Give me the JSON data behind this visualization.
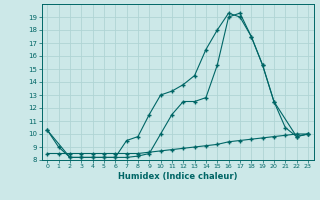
{
  "xlabel": "Humidex (Indice chaleur)",
  "bg_color": "#cce8e8",
  "line_color": "#006666",
  "grid_color": "#b0d4d4",
  "xlim": [
    -0.5,
    23.5
  ],
  "ylim": [
    8,
    20
  ],
  "yticks": [
    8,
    9,
    10,
    11,
    12,
    13,
    14,
    15,
    16,
    17,
    18,
    19
  ],
  "xticks": [
    0,
    1,
    2,
    3,
    4,
    5,
    6,
    7,
    8,
    9,
    10,
    11,
    12,
    13,
    14,
    15,
    16,
    17,
    18,
    19,
    20,
    21,
    22,
    23
  ],
  "curve1_x": [
    0,
    1,
    2,
    3,
    4,
    5,
    6,
    7,
    8,
    9,
    10,
    11,
    12,
    13,
    14,
    15,
    16,
    17,
    18,
    19,
    20,
    21,
    22,
    23
  ],
  "curve1_y": [
    8.5,
    8.5,
    8.5,
    8.5,
    8.5,
    8.5,
    8.5,
    8.5,
    8.5,
    8.6,
    8.7,
    8.8,
    8.9,
    9.0,
    9.1,
    9.2,
    9.4,
    9.5,
    9.6,
    9.7,
    9.8,
    9.9,
    10.0,
    10.0
  ],
  "curve2_x": [
    0,
    1,
    2,
    3,
    4,
    5,
    6,
    7,
    8,
    9,
    10,
    11,
    12,
    13,
    14,
    15,
    16,
    17,
    18,
    19,
    20,
    21,
    22,
    23
  ],
  "curve2_y": [
    10.3,
    9.0,
    8.2,
    8.2,
    8.2,
    8.2,
    8.2,
    8.2,
    8.3,
    8.5,
    10.0,
    11.5,
    12.5,
    12.5,
    12.8,
    15.3,
    19.0,
    19.3,
    17.5,
    15.3,
    12.5,
    10.5,
    9.8,
    10.0
  ],
  "curve3_x": [
    0,
    2,
    3,
    4,
    5,
    6,
    7,
    8,
    9,
    10,
    11,
    12,
    13,
    14,
    15,
    16,
    17,
    18,
    19,
    20,
    22,
    23
  ],
  "curve3_y": [
    10.3,
    8.2,
    8.2,
    8.2,
    8.2,
    8.2,
    9.5,
    9.8,
    11.5,
    13.0,
    13.3,
    13.8,
    14.5,
    16.5,
    18.0,
    19.3,
    19.0,
    17.5,
    15.3,
    12.5,
    9.8,
    10.0
  ]
}
